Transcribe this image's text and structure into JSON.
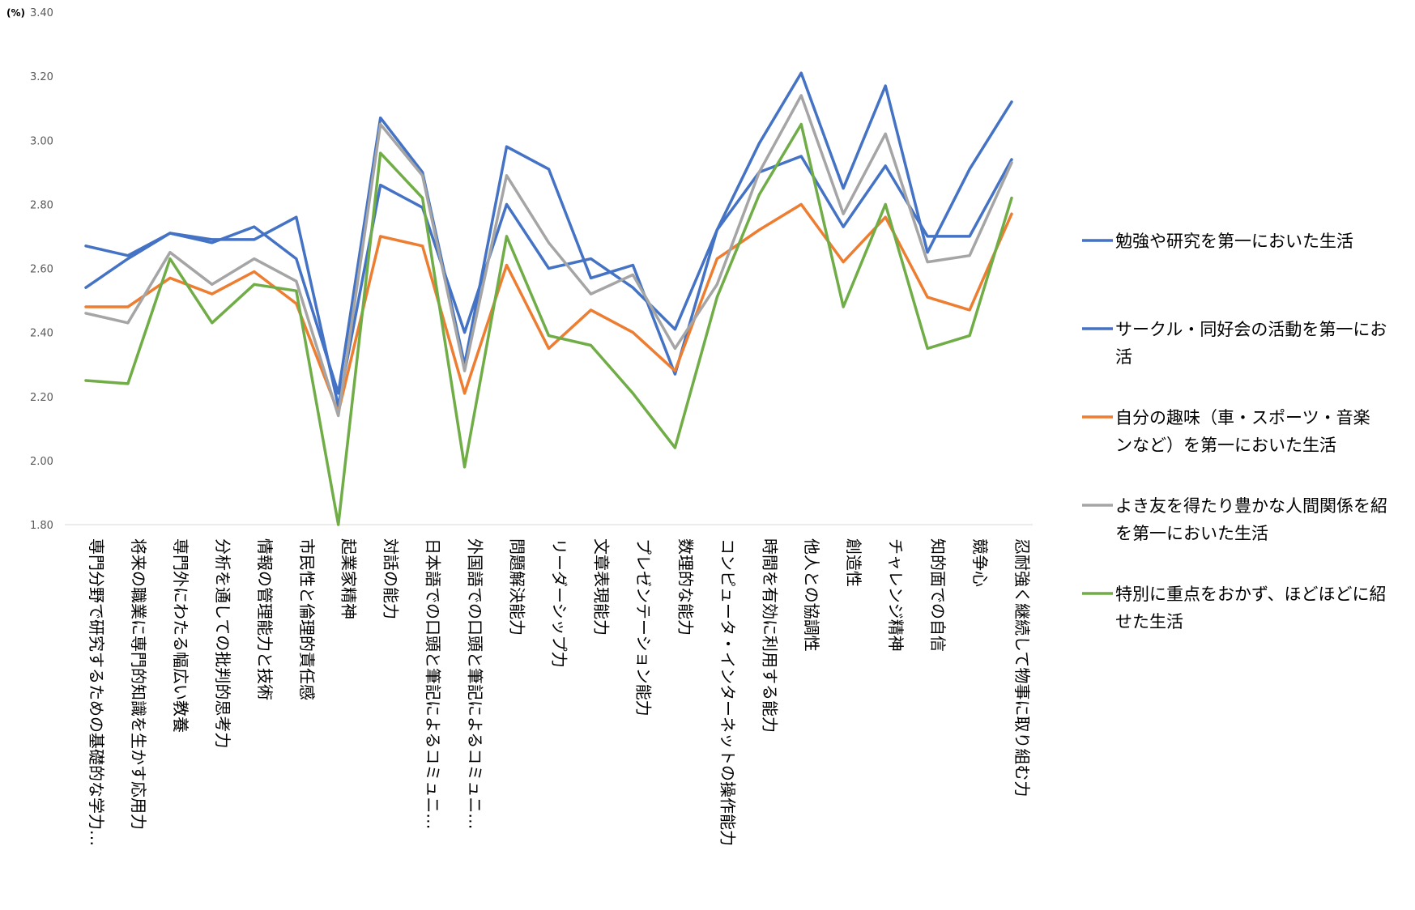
{
  "chart_data": {
    "type": "line",
    "ylabel": "(%)",
    "ylim": [
      1.8,
      3.4
    ],
    "y_ticks": [
      "3.40",
      "3.20",
      "3.00",
      "2.80",
      "2.60",
      "2.40",
      "2.20",
      "2.00",
      "1.80"
    ],
    "grid": false,
    "legend_position": "right",
    "categories": [
      "専門分野で研究するための基礎的な学力…",
      "将来の職業に専門的知識を生かす応用力",
      "専門外にわたる幅広い教養",
      "分析を通しての批判的思考力",
      "情報の管理能力と技術",
      "市民性と倫理的責任感",
      "起業家精神",
      "対話の能力",
      "日本語での口頭と筆記によるコミュニ…",
      "外国語での口頭と筆記によるコミュニ…",
      "問題解決能力",
      "リーダーシップ力",
      "文章表現能力",
      "プレゼンテーション能力",
      "数理的な能力",
      "コンピュータ・インターネットの操作能力",
      "時間を有効に利用する能力",
      "他人との協調性",
      "創造性",
      "チャレンジ精神",
      "知的面での自信",
      "競争心",
      "忍耐強く継続して物事に取り組む力"
    ],
    "series": [
      {
        "name": "勉強や研究を第一においた生活",
        "color": "#4472C4",
        "legend_lines": [
          "勉強や研究を第一においた生活"
        ],
        "values": [
          2.67,
          2.64,
          2.71,
          2.69,
          2.69,
          2.76,
          2.17,
          2.86,
          2.79,
          2.4,
          2.8,
          2.6,
          2.63,
          2.54,
          2.41,
          2.72,
          2.9,
          2.95,
          2.73,
          2.92,
          2.7,
          2.7,
          2.94
        ]
      },
      {
        "name": "サークル・同好会の活動を第一にお",
        "color": "#4472C4",
        "legend_lines": [
          "サークル・同好会の活動を第一にお",
          "活"
        ],
        "values": [
          2.54,
          2.63,
          2.71,
          2.68,
          2.73,
          2.63,
          2.21,
          3.07,
          2.9,
          2.3,
          2.98,
          2.91,
          2.57,
          2.61,
          2.27,
          2.72,
          2.99,
          3.21,
          2.85,
          3.17,
          2.65,
          2.91,
          3.12
        ]
      },
      {
        "name": "自分の趣味（車・スポーツ・音楽",
        "color": "#ED7D31",
        "legend_lines": [
          "自分の趣味（車・スポーツ・音楽",
          "ンなど）を第一においた生活"
        ],
        "values": [
          2.48,
          2.48,
          2.57,
          2.52,
          2.59,
          2.49,
          2.15,
          2.7,
          2.67,
          2.21,
          2.61,
          2.35,
          2.47,
          2.4,
          2.28,
          2.63,
          2.72,
          2.8,
          2.62,
          2.76,
          2.51,
          2.47,
          2.77
        ]
      },
      {
        "name": "よき友を得たり豊かな人間関係を紹",
        "color": "#A5A5A5",
        "legend_lines": [
          "よき友を得たり豊かな人間関係を紹",
          "を第一においた生活"
        ],
        "values": [
          2.46,
          2.43,
          2.65,
          2.55,
          2.63,
          2.56,
          2.14,
          3.05,
          2.89,
          2.28,
          2.89,
          2.68,
          2.52,
          2.58,
          2.35,
          2.55,
          2.9,
          3.14,
          2.77,
          3.02,
          2.62,
          2.64,
          2.93
        ]
      },
      {
        "name": "特別に重点をおかず、ほどほどに紹",
        "color": "#70AD47",
        "legend_lines": [
          "特別に重点をおかず、ほどほどに紹",
          "せた生活"
        ],
        "values": [
          2.25,
          2.24,
          2.63,
          2.43,
          2.55,
          2.53,
          1.8,
          2.96,
          2.82,
          1.98,
          2.7,
          2.39,
          2.36,
          2.21,
          2.04,
          2.51,
          2.83,
          3.05,
          2.48,
          2.8,
          2.35,
          2.39,
          2.82
        ]
      }
    ]
  }
}
